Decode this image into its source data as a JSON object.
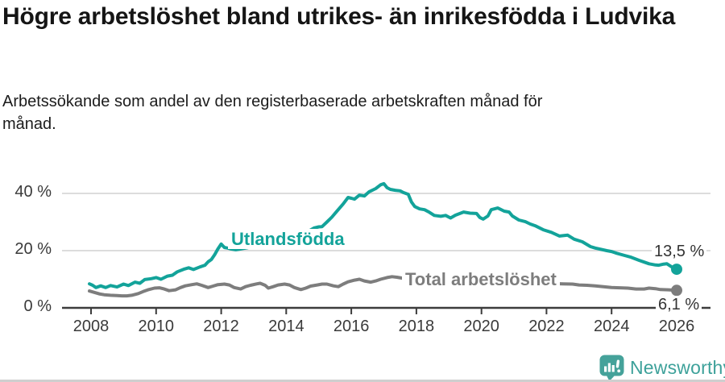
{
  "chart_data": {
    "type": "line",
    "title": "Högre arbetslöshet bland utrikes- än inrikesfödda i Ludvika",
    "subtitle": "Arbetssökande som andel av den registerbaserade arbetskraften månad för månad.",
    "unit": "%",
    "xlabel": "",
    "ylabel": "",
    "xlim": [
      2007.9,
      2027.1
    ],
    "ylim": [
      0,
      45
    ],
    "grid": "horizontal",
    "legend_position": "inline-line-labels",
    "x_ticks": [
      2008,
      2010,
      2012,
      2014,
      2016,
      2018,
      2020,
      2022,
      2024,
      2026
    ],
    "y_ticks": [
      {
        "value": 0,
        "label": "0 %"
      },
      {
        "value": 20,
        "label": "20 %"
      },
      {
        "value": 40,
        "label": "40 %"
      }
    ],
    "series": [
      {
        "name": "Utlandsfödda",
        "color": "#13a39a",
        "end_label": "13,5 %",
        "end_value": 13.5,
        "points": [
          [
            2007.95,
            8.4
          ],
          [
            2008.05,
            7.9
          ],
          [
            2008.15,
            7.1
          ],
          [
            2008.3,
            7.7
          ],
          [
            2008.45,
            7.1
          ],
          [
            2008.6,
            7.8
          ],
          [
            2008.8,
            7.3
          ],
          [
            2009.0,
            8.3
          ],
          [
            2009.15,
            7.8
          ],
          [
            2009.35,
            9.0
          ],
          [
            2009.5,
            8.6
          ],
          [
            2009.65,
            9.9
          ],
          [
            2009.85,
            10.2
          ],
          [
            2010.0,
            10.6
          ],
          [
            2010.15,
            10.0
          ],
          [
            2010.35,
            11.1
          ],
          [
            2010.5,
            11.4
          ],
          [
            2010.65,
            12.6
          ],
          [
            2010.85,
            13.5
          ],
          [
            2011.0,
            14.0
          ],
          [
            2011.15,
            13.4
          ],
          [
            2011.35,
            14.3
          ],
          [
            2011.5,
            14.9
          ],
          [
            2011.6,
            16.1
          ],
          [
            2011.7,
            16.9
          ],
          [
            2011.8,
            18.6
          ],
          [
            2011.9,
            20.6
          ],
          [
            2012.0,
            22.3
          ],
          [
            2012.1,
            21.1
          ],
          [
            2012.2,
            20.9
          ],
          [
            2012.3,
            20.6
          ],
          [
            2012.45,
            20.3
          ],
          [
            2012.6,
            20.6
          ],
          [
            2012.8,
            21.0
          ],
          [
            2013.0,
            21.6
          ],
          [
            2013.25,
            22.3
          ],
          [
            2013.5,
            22.9
          ],
          [
            2013.75,
            23.7
          ],
          [
            2014.0,
            24.3
          ],
          [
            2014.25,
            25.1
          ],
          [
            2014.5,
            26.0
          ],
          [
            2014.7,
            26.9
          ],
          [
            2014.85,
            27.9
          ],
          [
            2015.0,
            28.3
          ],
          [
            2015.1,
            28.4
          ],
          [
            2015.25,
            30.0
          ],
          [
            2015.4,
            31.7
          ],
          [
            2015.55,
            33.7
          ],
          [
            2015.75,
            36.3
          ],
          [
            2015.9,
            38.6
          ],
          [
            2016.0,
            38.3
          ],
          [
            2016.1,
            38.0
          ],
          [
            2016.25,
            39.4
          ],
          [
            2016.4,
            39.1
          ],
          [
            2016.55,
            40.6
          ],
          [
            2016.75,
            41.7
          ],
          [
            2016.9,
            43.0
          ],
          [
            2017.0,
            43.4
          ],
          [
            2017.1,
            42.0
          ],
          [
            2017.2,
            41.4
          ],
          [
            2017.35,
            41.1
          ],
          [
            2017.5,
            40.9
          ],
          [
            2017.6,
            40.3
          ],
          [
            2017.75,
            39.7
          ],
          [
            2017.85,
            37.0
          ],
          [
            2017.95,
            35.4
          ],
          [
            2018.1,
            34.6
          ],
          [
            2018.25,
            34.3
          ],
          [
            2018.4,
            33.4
          ],
          [
            2018.55,
            32.3
          ],
          [
            2018.75,
            32.0
          ],
          [
            2018.9,
            32.3
          ],
          [
            2019.05,
            31.4
          ],
          [
            2019.2,
            32.4
          ],
          [
            2019.45,
            33.5
          ],
          [
            2019.65,
            33.1
          ],
          [
            2019.85,
            33.0
          ],
          [
            2019.95,
            31.6
          ],
          [
            2020.05,
            31.0
          ],
          [
            2020.2,
            32.1
          ],
          [
            2020.3,
            34.3
          ],
          [
            2020.5,
            34.9
          ],
          [
            2020.7,
            33.8
          ],
          [
            2020.85,
            33.5
          ],
          [
            2020.95,
            32.1
          ],
          [
            2021.15,
            30.7
          ],
          [
            2021.35,
            30.1
          ],
          [
            2021.5,
            29.3
          ],
          [
            2021.65,
            28.7
          ],
          [
            2021.9,
            27.3
          ],
          [
            2022.15,
            26.4
          ],
          [
            2022.4,
            25.1
          ],
          [
            2022.65,
            25.4
          ],
          [
            2022.85,
            24.0
          ],
          [
            2023.1,
            23.1
          ],
          [
            2023.35,
            21.4
          ],
          [
            2023.5,
            20.9
          ],
          [
            2023.85,
            20.0
          ],
          [
            2024.0,
            19.7
          ],
          [
            2024.15,
            19.1
          ],
          [
            2024.4,
            18.3
          ],
          [
            2024.6,
            17.7
          ],
          [
            2024.85,
            16.6
          ],
          [
            2025.0,
            16.0
          ],
          [
            2025.15,
            15.4
          ],
          [
            2025.35,
            15.0
          ],
          [
            2025.45,
            14.9
          ],
          [
            2025.6,
            15.3
          ],
          [
            2025.7,
            15.4
          ],
          [
            2025.85,
            14.3
          ],
          [
            2025.95,
            13.8
          ],
          [
            2026.0,
            13.5
          ]
        ]
      },
      {
        "name": "Total arbetslöshet",
        "color": "#7d7d7d",
        "end_label": "6,1 %",
        "end_value": 6.1,
        "points": [
          [
            2007.95,
            5.9
          ],
          [
            2008.1,
            5.4
          ],
          [
            2008.25,
            4.9
          ],
          [
            2008.4,
            4.6
          ],
          [
            2008.6,
            4.4
          ],
          [
            2008.8,
            4.3
          ],
          [
            2008.95,
            4.2
          ],
          [
            2009.1,
            4.2
          ],
          [
            2009.25,
            4.4
          ],
          [
            2009.45,
            5.0
          ],
          [
            2009.6,
            5.7
          ],
          [
            2009.75,
            6.3
          ],
          [
            2009.95,
            6.9
          ],
          [
            2010.1,
            7.0
          ],
          [
            2010.25,
            6.6
          ],
          [
            2010.4,
            6.0
          ],
          [
            2010.6,
            6.3
          ],
          [
            2010.75,
            7.1
          ],
          [
            2010.9,
            7.7
          ],
          [
            2011.1,
            8.1
          ],
          [
            2011.25,
            8.4
          ],
          [
            2011.4,
            7.9
          ],
          [
            2011.6,
            7.1
          ],
          [
            2011.75,
            7.6
          ],
          [
            2011.9,
            8.1
          ],
          [
            2012.1,
            8.3
          ],
          [
            2012.25,
            8.0
          ],
          [
            2012.4,
            7.1
          ],
          [
            2012.6,
            6.6
          ],
          [
            2012.75,
            7.4
          ],
          [
            2012.9,
            7.9
          ],
          [
            2013.1,
            8.4
          ],
          [
            2013.2,
            8.6
          ],
          [
            2013.35,
            7.9
          ],
          [
            2013.45,
            6.9
          ],
          [
            2013.6,
            7.4
          ],
          [
            2013.75,
            8.0
          ],
          [
            2013.95,
            8.3
          ],
          [
            2014.1,
            8.0
          ],
          [
            2014.25,
            7.1
          ],
          [
            2014.45,
            6.4
          ],
          [
            2014.6,
            6.9
          ],
          [
            2014.75,
            7.6
          ],
          [
            2014.95,
            8.0
          ],
          [
            2015.1,
            8.3
          ],
          [
            2015.25,
            8.3
          ],
          [
            2015.45,
            7.7
          ],
          [
            2015.6,
            7.4
          ],
          [
            2015.75,
            8.3
          ],
          [
            2015.9,
            9.1
          ],
          [
            2016.1,
            9.7
          ],
          [
            2016.25,
            10.0
          ],
          [
            2016.4,
            9.4
          ],
          [
            2016.6,
            9.0
          ],
          [
            2016.75,
            9.4
          ],
          [
            2016.9,
            10.0
          ],
          [
            2017.1,
            10.6
          ],
          [
            2017.25,
            10.9
          ],
          [
            2017.4,
            10.7
          ],
          [
            2017.6,
            10.3
          ],
          [
            2017.8,
            10.1
          ],
          [
            2018.0,
            10.0
          ],
          [
            2018.5,
            9.7
          ],
          [
            2019.0,
            9.4
          ],
          [
            2019.5,
            9.1
          ],
          [
            2020.0,
            9.6
          ],
          [
            2020.5,
            9.4
          ],
          [
            2021.0,
            9.1
          ],
          [
            2021.5,
            8.9
          ],
          [
            2022.0,
            8.6
          ],
          [
            2022.5,
            8.4
          ],
          [
            2022.8,
            8.3
          ],
          [
            2023.0,
            8.0
          ],
          [
            2023.25,
            7.9
          ],
          [
            2023.5,
            7.7
          ],
          [
            2023.75,
            7.4
          ],
          [
            2024.0,
            7.1
          ],
          [
            2024.25,
            7.0
          ],
          [
            2024.5,
            6.9
          ],
          [
            2024.75,
            6.6
          ],
          [
            2025.0,
            6.6
          ],
          [
            2025.15,
            6.9
          ],
          [
            2025.35,
            6.7
          ],
          [
            2025.5,
            6.4
          ],
          [
            2025.75,
            6.3
          ],
          [
            2026.0,
            6.1
          ]
        ]
      }
    ]
  },
  "footer": {
    "brand": "Newsworthy",
    "logo_icon": "speech-bubble-bar-chart-icon",
    "brand_color": "#3da19a"
  }
}
